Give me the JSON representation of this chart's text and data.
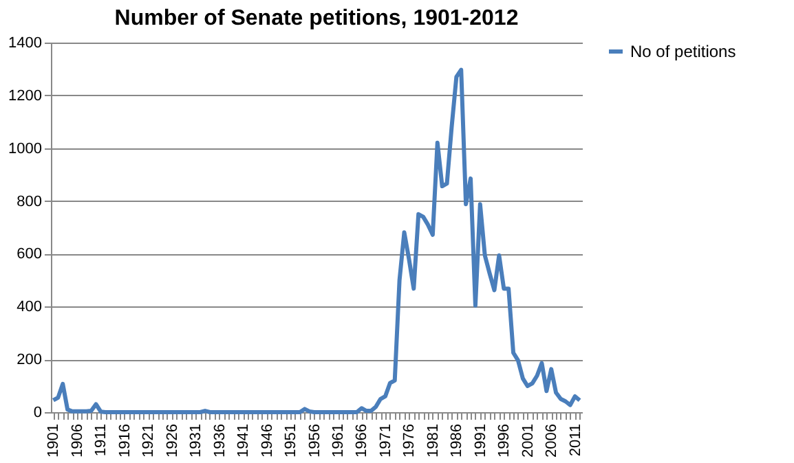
{
  "chart_data": {
    "type": "line",
    "title": "Number of Senate petitions, 1901-2012",
    "categories": [
      "1901",
      null,
      null,
      null,
      null,
      "1906",
      null,
      null,
      null,
      null,
      "1911",
      null,
      null,
      null,
      null,
      "1916",
      null,
      null,
      null,
      null,
      "1921",
      null,
      null,
      null,
      null,
      "1926",
      null,
      null,
      null,
      null,
      "1931",
      null,
      null,
      null,
      null,
      "1936",
      null,
      null,
      null,
      null,
      "1941",
      null,
      null,
      null,
      null,
      "1946",
      null,
      null,
      null,
      null,
      "1951",
      null,
      null,
      null,
      null,
      "1956",
      null,
      null,
      null,
      null,
      "1961",
      null,
      null,
      null,
      null,
      "1966",
      null,
      null,
      null,
      null,
      "1971",
      null,
      null,
      null,
      null,
      "1976",
      null,
      null,
      null,
      null,
      "1981",
      null,
      null,
      null,
      null,
      "1986",
      null,
      null,
      null,
      null,
      "1991",
      null,
      null,
      null,
      null,
      "1996",
      null,
      null,
      null,
      null,
      "2001",
      null,
      null,
      null,
      null,
      "2006",
      null,
      null,
      null,
      null,
      "2011",
      null
    ],
    "series": [
      {
        "name": "No of petitions",
        "color": "#4a7ebb",
        "values": [
          45,
          55,
          107,
          10,
          3,
          3,
          3,
          3,
          5,
          30,
          2,
          0,
          0,
          0,
          0,
          0,
          0,
          0,
          0,
          0,
          0,
          0,
          0,
          0,
          0,
          0,
          0,
          0,
          0,
          0,
          0,
          0,
          5,
          0,
          0,
          0,
          0,
          0,
          0,
          0,
          0,
          0,
          0,
          0,
          0,
          0,
          0,
          0,
          0,
          0,
          0,
          0,
          0,
          12,
          3,
          0,
          0,
          0,
          0,
          0,
          0,
          0,
          0,
          0,
          0,
          15,
          5,
          5,
          20,
          50,
          60,
          110,
          120,
          500,
          681,
          580,
          468,
          750,
          740,
          710,
          672,
          1021,
          856,
          866,
          1080,
          1270,
          1297,
          788,
          885,
          404,
          788,
          594,
          526,
          462,
          594,
          468,
          468,
          225,
          196,
          128,
          99,
          109,
          138,
          186,
          80,
          163,
          74,
          50,
          41,
          27,
          60,
          45
        ]
      }
    ],
    "ylim": [
      0,
      1400
    ],
    "yticks": [
      0,
      200,
      400,
      600,
      800,
      1000,
      1200,
      1400
    ],
    "grid": "y",
    "legend": "right",
    "line_style": "solid",
    "marker": "none"
  }
}
